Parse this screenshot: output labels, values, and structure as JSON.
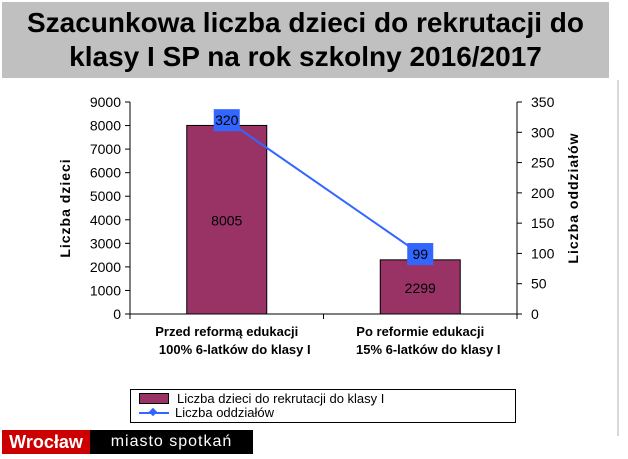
{
  "title": {
    "line1": "Szacunkowa liczba dzieci do rekrutacji do",
    "line2": "klasy I SP na rok szkolny 2016/2017"
  },
  "chart_data": {
    "type": "bar",
    "categories": [
      [
        "Przed reformą edukacji",
        "100% 6-latków do klasy I"
      ],
      [
        "Po reformie edukacji",
        "15% 6-latków do klasy I"
      ]
    ],
    "series": [
      {
        "name": "Liczba dzieci do rekrutacji do klasy I",
        "type": "bar",
        "axis": "left",
        "values": [
          8005,
          2299
        ],
        "color": "#993366",
        "labels": [
          "8005",
          "2299"
        ]
      },
      {
        "name": "Liczba oddziałów",
        "type": "line",
        "axis": "right",
        "values": [
          320,
          99
        ],
        "color": "#3366ff",
        "labels": [
          "320",
          "99"
        ]
      }
    ],
    "ylabel": "Liczba dzieci",
    "y2label": "Liczba oddziałów",
    "ylim": [
      0,
      9000
    ],
    "y2lim": [
      0,
      350
    ],
    "yticks": [
      "0",
      "1000",
      "2000",
      "3000",
      "4000",
      "5000",
      "6000",
      "7000",
      "8000",
      "9000"
    ],
    "y2ticks": [
      "0",
      "50",
      "100",
      "150",
      "200",
      "250",
      "300",
      "350"
    ],
    "grid": false,
    "legend_position": "bottom"
  },
  "legend": {
    "bar_label": "Liczba dzieci do rekrutacji do klasy I",
    "line_label": "Liczba oddziałów"
  },
  "branding": {
    "city": "Wrocław",
    "slogan": "miasto spotkań",
    "red": "#cc0000"
  }
}
